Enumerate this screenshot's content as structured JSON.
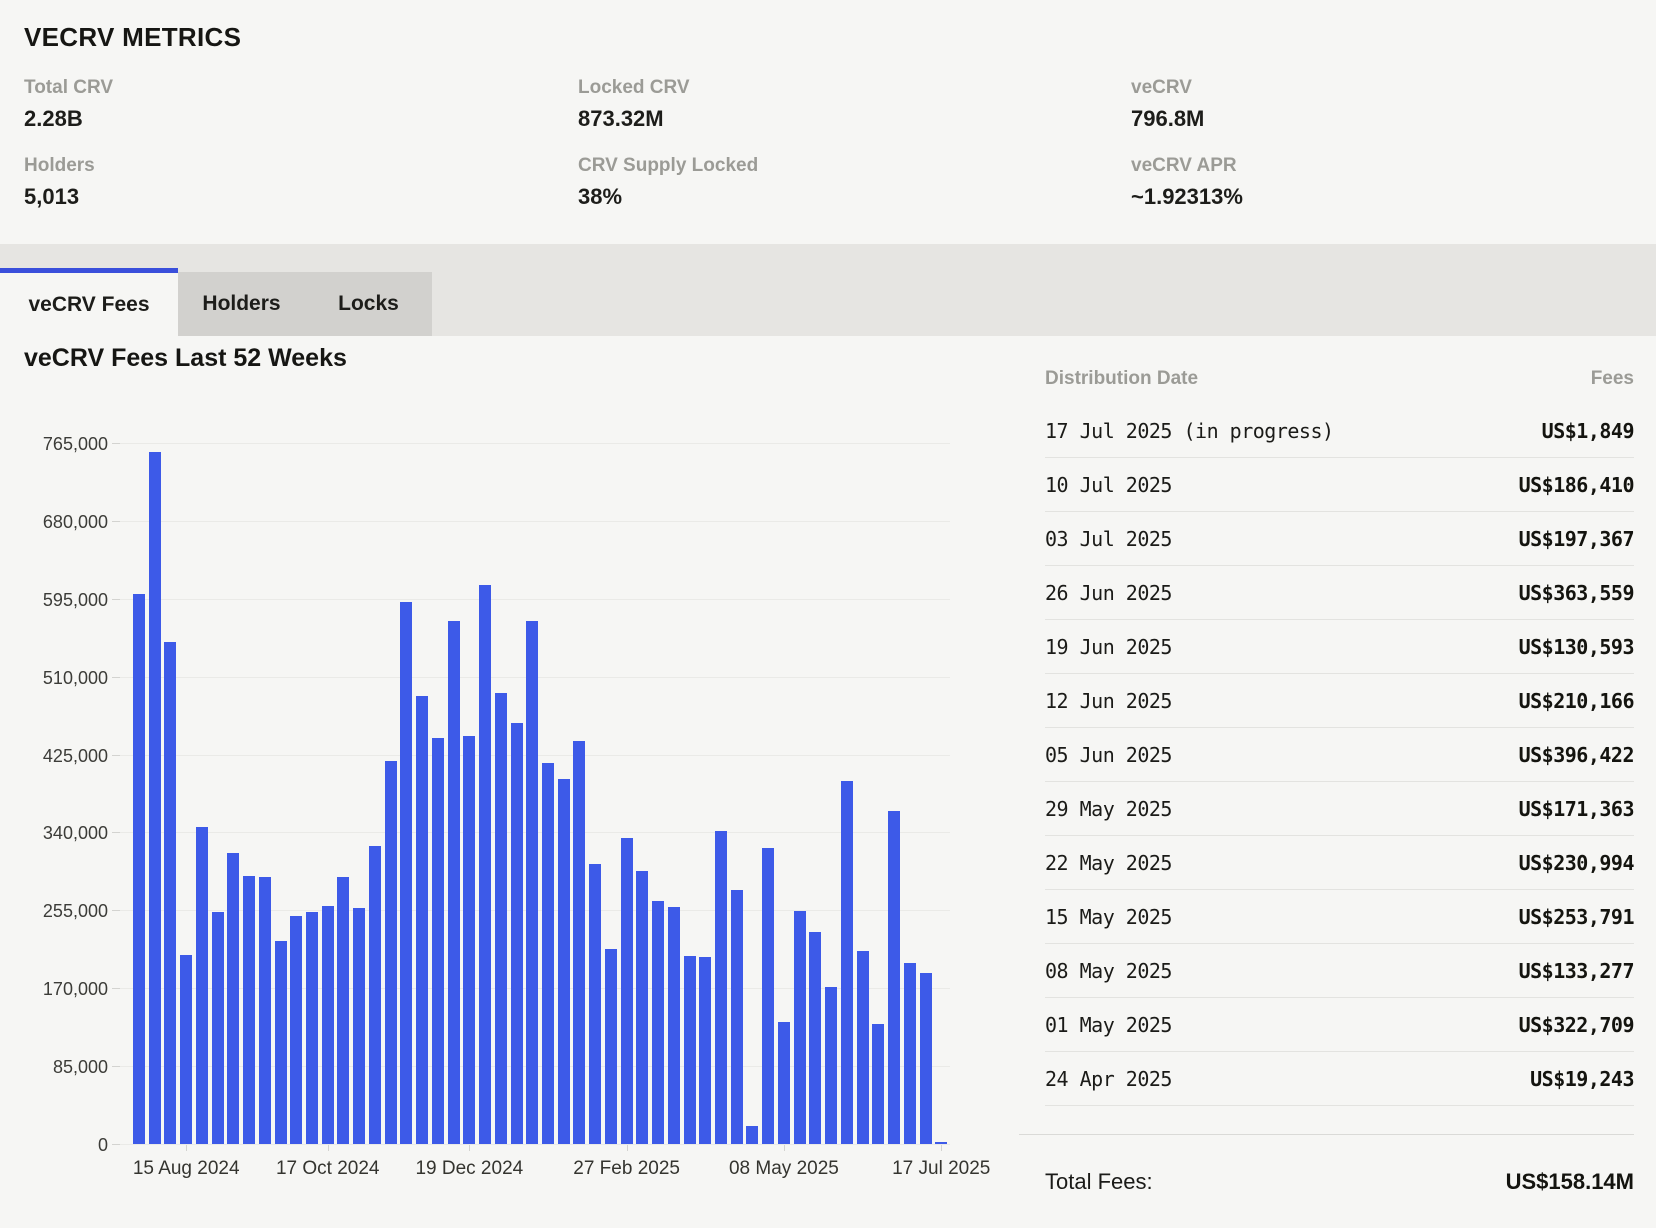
{
  "metrics": {
    "title": "VECRV METRICS",
    "stats": [
      {
        "label": "Total CRV",
        "value": "2.28B"
      },
      {
        "label": "Locked CRV",
        "value": "873.32M"
      },
      {
        "label": "veCRV",
        "value": "796.8M"
      },
      {
        "label": "Holders",
        "value": "5,013"
      },
      {
        "label": "CRV Supply Locked",
        "value": "38%"
      },
      {
        "label": "veCRV APR",
        "value": "~1.92313%"
      }
    ]
  },
  "tabs": {
    "active": {
      "label": "veCRV Fees"
    },
    "inactive": [
      {
        "label": "Holders"
      },
      {
        "label": "Locks"
      }
    ]
  },
  "chart_data": {
    "type": "bar",
    "title": "veCRV Fees Last 52 Weeks",
    "ylabel": "",
    "xlabel": "",
    "unit": "US$",
    "ylim": [
      0,
      765000
    ],
    "y_ticks": [
      0,
      85000,
      170000,
      255000,
      340000,
      425000,
      510000,
      595000,
      680000,
      765000
    ],
    "grid": true,
    "bar_color": "#3d5ae8",
    "x_tick_labels": [
      {
        "bar_index": 3,
        "label": "15 Aug 2024"
      },
      {
        "bar_index": 12,
        "label": "17 Oct 2024"
      },
      {
        "bar_index": 21,
        "label": "19 Dec 2024"
      },
      {
        "bar_index": 31,
        "label": "27 Feb 2025"
      },
      {
        "bar_index": 41,
        "label": "08 May 2025"
      },
      {
        "bar_index": 51,
        "label": "17 Jul 2025"
      }
    ],
    "values": [
      600000,
      755000,
      548000,
      206000,
      346000,
      253000,
      318000,
      292000,
      291000,
      221000,
      249000,
      253000,
      260000,
      291000,
      258000,
      325000,
      418000,
      592000,
      489000,
      443000,
      571000,
      445000,
      610000,
      492000,
      459000,
      571000,
      416000,
      398000,
      440000,
      306000,
      213000,
      334000,
      298000,
      265000,
      259000,
      205000,
      204000,
      342000,
      277000,
      19243,
      322709,
      133277,
      253791,
      230994,
      171363,
      396422,
      210166,
      130593,
      363559,
      197367,
      186410,
      1849
    ]
  },
  "table": {
    "columns": {
      "date": "Distribution Date",
      "fees": "Fees"
    },
    "rows": [
      {
        "date": "17 Jul 2025 (in progress)",
        "fee": "US$1,849"
      },
      {
        "date": "10 Jul 2025",
        "fee": "US$186,410"
      },
      {
        "date": "03 Jul 2025",
        "fee": "US$197,367"
      },
      {
        "date": "26 Jun 2025",
        "fee": "US$363,559"
      },
      {
        "date": "19 Jun 2025",
        "fee": "US$130,593"
      },
      {
        "date": "12 Jun 2025",
        "fee": "US$210,166"
      },
      {
        "date": "05 Jun 2025",
        "fee": "US$396,422"
      },
      {
        "date": "29 May 2025",
        "fee": "US$171,363"
      },
      {
        "date": "22 May 2025",
        "fee": "US$230,994"
      },
      {
        "date": "15 May 2025",
        "fee": "US$253,791"
      },
      {
        "date": "08 May 2025",
        "fee": "US$133,277"
      },
      {
        "date": "01 May 2025",
        "fee": "US$322,709"
      },
      {
        "date": "24 Apr 2025",
        "fee": "US$19,243"
      }
    ],
    "total": {
      "label": "Total Fees:",
      "value": "US$158.14M"
    }
  },
  "colors": {
    "page_bg": "#f6f6f4",
    "bar_blue": "#3d5ae8",
    "tab_accent_blue": "#3a4fdb",
    "tabbar_bg": "#e6e5e2",
    "inactive_tab_bg": "#d2d1ce",
    "gridline": "#eaeae7",
    "row_divider": "#e3e3e0",
    "muted_label": "#9b9b96",
    "text_dark": "#1d1d1a"
  }
}
